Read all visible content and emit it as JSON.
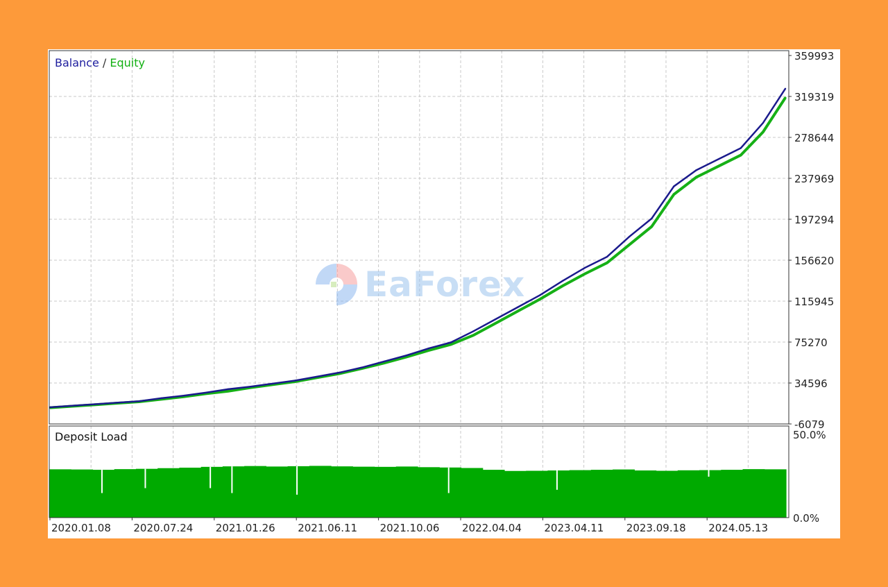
{
  "chart_data": [
    {
      "type": "line",
      "title": "",
      "legend": {
        "balance_label": "Balance",
        "separator": " / ",
        "equity_label": "Equity",
        "placement": "top-left"
      },
      "yticks": [
        359993,
        319319,
        278644,
        237969,
        197294,
        156620,
        115945,
        75270,
        34596,
        -6079
      ],
      "ylim": [
        -6079,
        359993
      ],
      "grid": true,
      "colors": {
        "balance": "#1a1a8c",
        "equity": "#16b016"
      },
      "series": [
        {
          "name": "Balance",
          "values": [
            10500,
            12000,
            13500,
            15000,
            16500,
            19500,
            22000,
            25000,
            28500,
            31000,
            34000,
            37000,
            41000,
            45000,
            50000,
            56000,
            62000,
            69000,
            75000,
            86000,
            98000,
            110000,
            122000,
            136000,
            149000,
            160000,
            180000,
            198000,
            230000,
            246000,
            257000,
            268000,
            293000,
            327000
          ]
        },
        {
          "name": "Equity",
          "values": [
            10000,
            11500,
            13000,
            14500,
            16000,
            18500,
            21000,
            24000,
            26500,
            30000,
            33000,
            36000,
            40000,
            44000,
            49000,
            54500,
            60500,
            67000,
            73000,
            82000,
            94000,
            106000,
            118000,
            131000,
            143000,
            154000,
            172000,
            190000,
            222000,
            239000,
            250000,
            261000,
            284000,
            318000
          ]
        }
      ]
    },
    {
      "type": "bar",
      "title": "Deposit Load",
      "yticks": [
        "50.0%",
        "0.0%"
      ],
      "ylim": [
        0,
        50
      ],
      "color": "#00aa00",
      "values": [
        29.5,
        29.4,
        29.2,
        29.6,
        29.8,
        30.2,
        30.5,
        31,
        31.3,
        31.5,
        31.2,
        31.4,
        31.6,
        31.3,
        31.1,
        31,
        31.2,
        30.8,
        30.6,
        30.3,
        29.2,
        28.5,
        28.6,
        28.8,
        29,
        29.2,
        29.4,
        28.8,
        28.6,
        28.9,
        29,
        29.2,
        29.6,
        29.5
      ],
      "dips": [
        [
          2,
          15
        ],
        [
          4,
          18
        ],
        [
          7,
          18
        ],
        [
          8,
          15
        ],
        [
          11,
          14
        ],
        [
          18,
          15
        ],
        [
          23,
          17
        ],
        [
          30,
          25
        ]
      ]
    }
  ],
  "xticks": [
    "2020.01.08",
    "2020.07.24",
    "2021.01.26",
    "2021.06.11",
    "2021.10.06",
    "2022.04.04",
    "2023.04.11",
    "2023.09.18",
    "2024.05.13"
  ],
  "watermark": "EaForex"
}
